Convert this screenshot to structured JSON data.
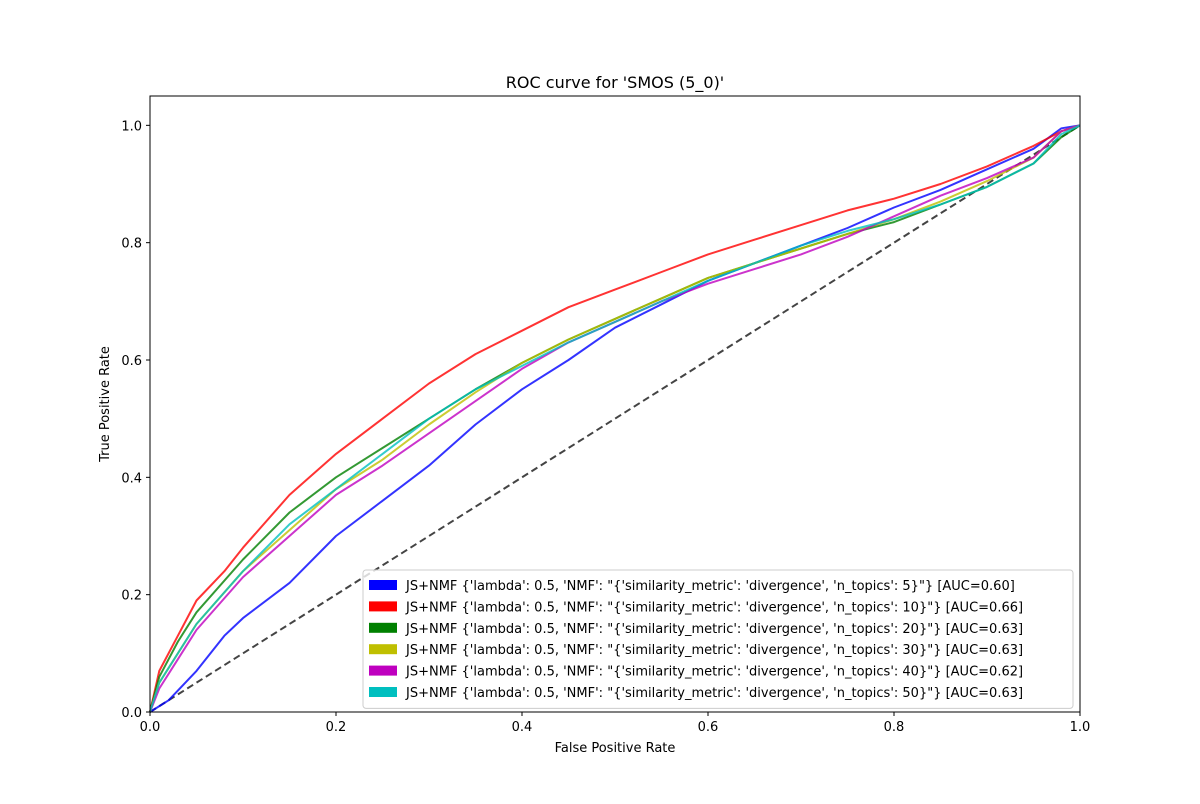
{
  "chart_data": {
    "type": "line",
    "title": "ROC curve for 'SMOS (5_0)'",
    "xlabel": "False Positive Rate",
    "ylabel": "True Positive Rate",
    "xlim": [
      0.0,
      1.0
    ],
    "ylim": [
      0.0,
      1.05
    ],
    "x_ticks": [
      "0.0",
      "0.2",
      "0.4",
      "0.6",
      "0.8",
      "1.0"
    ],
    "y_ticks": [
      "0.0",
      "0.2",
      "0.4",
      "0.6",
      "0.8",
      "1.0"
    ],
    "grid": false,
    "legend_position": "lower-right",
    "reference_line": {
      "x": [
        0,
        1
      ],
      "y": [
        0,
        1
      ],
      "style": "dashed",
      "color": "#444444"
    },
    "series": [
      {
        "name": "JS+NMF {'lambda': 0.5, 'NMF': \"{'similarity_metric': 'divergence', 'n_topics': 5}\"} [AUC=0.60]",
        "color": "#0000ff",
        "x": [
          0,
          0.02,
          0.05,
          0.08,
          0.1,
          0.15,
          0.2,
          0.25,
          0.3,
          0.35,
          0.4,
          0.45,
          0.5,
          0.55,
          0.6,
          0.65,
          0.7,
          0.75,
          0.8,
          0.85,
          0.9,
          0.95,
          0.98,
          1.0
        ],
        "y": [
          0,
          0.02,
          0.07,
          0.13,
          0.16,
          0.22,
          0.3,
          0.36,
          0.42,
          0.49,
          0.55,
          0.6,
          0.655,
          0.695,
          0.735,
          0.765,
          0.795,
          0.825,
          0.86,
          0.89,
          0.925,
          0.96,
          0.995,
          1.0
        ]
      },
      {
        "name": "JS+NMF {'lambda': 0.5, 'NMF': \"{'similarity_metric': 'divergence', 'n_topics': 10}\"} [AUC=0.66]",
        "color": "#ff0000",
        "x": [
          0,
          0.01,
          0.03,
          0.05,
          0.08,
          0.1,
          0.15,
          0.2,
          0.25,
          0.3,
          0.35,
          0.4,
          0.45,
          0.5,
          0.55,
          0.6,
          0.65,
          0.7,
          0.75,
          0.8,
          0.85,
          0.9,
          0.95,
          0.98,
          1.0
        ],
        "y": [
          0,
          0.07,
          0.13,
          0.19,
          0.24,
          0.28,
          0.37,
          0.44,
          0.5,
          0.56,
          0.61,
          0.65,
          0.69,
          0.72,
          0.75,
          0.78,
          0.805,
          0.83,
          0.855,
          0.875,
          0.9,
          0.93,
          0.965,
          0.99,
          1.0
        ]
      },
      {
        "name": "JS+NMF {'lambda': 0.5, 'NMF': \"{'similarity_metric': 'divergence', 'n_topics': 20}\"} [AUC=0.63]",
        "color": "#008000",
        "x": [
          0,
          0.01,
          0.03,
          0.05,
          0.1,
          0.15,
          0.2,
          0.25,
          0.3,
          0.35,
          0.4,
          0.45,
          0.5,
          0.55,
          0.6,
          0.65,
          0.7,
          0.75,
          0.8,
          0.85,
          0.9,
          0.95,
          0.98,
          1.0
        ],
        "y": [
          0,
          0.06,
          0.12,
          0.17,
          0.26,
          0.34,
          0.4,
          0.45,
          0.5,
          0.55,
          0.595,
          0.635,
          0.67,
          0.705,
          0.74,
          0.765,
          0.79,
          0.815,
          0.835,
          0.865,
          0.895,
          0.935,
          0.98,
          1.0
        ]
      },
      {
        "name": "JS+NMF {'lambda': 0.5, 'NMF': \"{'similarity_metric': 'divergence', 'n_topics': 30}\"} [AUC=0.63]",
        "color": "#bfbf00",
        "x": [
          0,
          0.01,
          0.03,
          0.05,
          0.1,
          0.15,
          0.2,
          0.25,
          0.3,
          0.35,
          0.4,
          0.45,
          0.5,
          0.55,
          0.6,
          0.65,
          0.7,
          0.75,
          0.8,
          0.85,
          0.9,
          0.95,
          0.98,
          1.0
        ],
        "y": [
          0,
          0.05,
          0.1,
          0.15,
          0.24,
          0.31,
          0.38,
          0.43,
          0.49,
          0.545,
          0.595,
          0.635,
          0.67,
          0.705,
          0.74,
          0.765,
          0.79,
          0.815,
          0.84,
          0.87,
          0.905,
          0.945,
          0.99,
          1.0
        ]
      },
      {
        "name": "JS+NMF {'lambda': 0.5, 'NMF': \"{'similarity_metric': 'divergence', 'n_topics': 40}\"} [AUC=0.62]",
        "color": "#bf00bf",
        "x": [
          0,
          0.01,
          0.03,
          0.05,
          0.1,
          0.15,
          0.2,
          0.25,
          0.3,
          0.35,
          0.4,
          0.45,
          0.5,
          0.55,
          0.6,
          0.65,
          0.7,
          0.75,
          0.8,
          0.85,
          0.9,
          0.95,
          0.98,
          1.0
        ],
        "y": [
          0,
          0.04,
          0.09,
          0.14,
          0.23,
          0.3,
          0.37,
          0.42,
          0.475,
          0.53,
          0.585,
          0.63,
          0.665,
          0.7,
          0.73,
          0.755,
          0.78,
          0.81,
          0.845,
          0.88,
          0.91,
          0.945,
          0.99,
          1.0
        ]
      },
      {
        "name": "JS+NMF {'lambda': 0.5, 'NMF': \"{'similarity_metric': 'divergence', 'n_topics': 50}\"} [AUC=0.63]",
        "color": "#00bfbf",
        "x": [
          0,
          0.01,
          0.03,
          0.05,
          0.1,
          0.15,
          0.2,
          0.25,
          0.3,
          0.35,
          0.4,
          0.45,
          0.5,
          0.55,
          0.6,
          0.65,
          0.7,
          0.75,
          0.8,
          0.85,
          0.9,
          0.95,
          0.98,
          1.0
        ],
        "y": [
          0,
          0.05,
          0.1,
          0.15,
          0.24,
          0.32,
          0.38,
          0.44,
          0.5,
          0.55,
          0.59,
          0.63,
          0.665,
          0.7,
          0.735,
          0.765,
          0.795,
          0.82,
          0.84,
          0.865,
          0.895,
          0.935,
          0.985,
          1.0
        ]
      }
    ]
  }
}
